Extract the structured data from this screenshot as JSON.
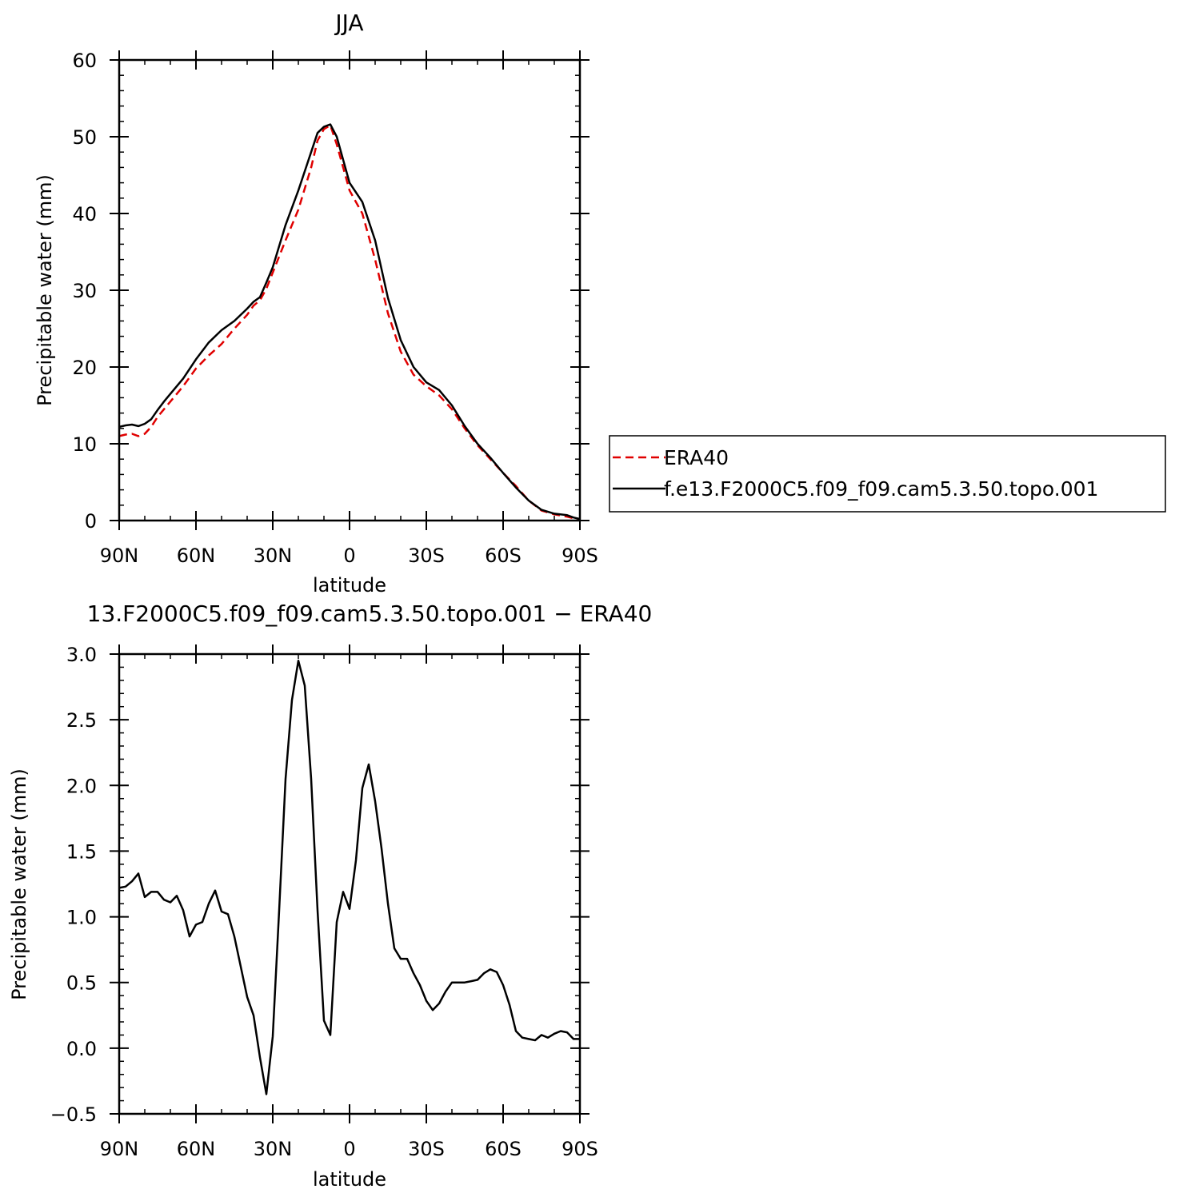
{
  "chart_data": [
    {
      "type": "line",
      "title": "JJA",
      "xlabel": "latitude",
      "ylabel": "Precipitable water (mm)",
      "xlim": [
        90,
        -90
      ],
      "ylim": [
        0,
        60
      ],
      "x_ticks": [
        90,
        60,
        30,
        0,
        -30,
        -60,
        -90
      ],
      "x_tick_labels": [
        "90N",
        "60N",
        "30N",
        "0",
        "30S",
        "60S",
        "90S"
      ],
      "y_ticks": [
        0,
        10,
        20,
        30,
        40,
        50,
        60
      ],
      "y_tick_labels": [
        "0",
        "10",
        "20",
        "30",
        "40",
        "50",
        "60"
      ],
      "legend": "right",
      "series": [
        {
          "name": "ERA40",
          "color": "#e00000",
          "dash": true,
          "x": [
            90,
            87.5,
            85,
            82.5,
            80,
            77.5,
            75,
            72.5,
            70,
            65,
            60,
            55,
            50,
            45,
            40,
            37.5,
            35,
            32.5,
            30,
            25,
            20,
            15,
            12.5,
            10,
            7.5,
            5,
            2.5,
            0,
            -5,
            -10,
            -15,
            -20,
            -25,
            -30,
            -35,
            -40,
            -45,
            -50,
            -55,
            -60,
            -65,
            -70,
            -75,
            -80,
            -85,
            -87.5,
            -90
          ],
          "values": [
            11.0,
            11.2,
            11.3,
            11.0,
            11.3,
            12.2,
            13.5,
            14.5,
            15.5,
            17.5,
            19.8,
            21.5,
            23.0,
            25.0,
            26.8,
            28.0,
            28.7,
            30.2,
            32.3,
            36.5,
            40.5,
            46.0,
            49.5,
            51.0,
            51.5,
            49.0,
            46.0,
            43.0,
            40.0,
            34.0,
            27.0,
            22.0,
            19.0,
            17.5,
            16.3,
            14.5,
            12.0,
            9.8,
            8.0,
            6.2,
            4.5,
            2.6,
            1.3,
            0.8,
            0.5,
            0.3,
            0.2
          ]
        },
        {
          "name": "f.e13.F2000C5.f09_f09.cam5.3.50.topo.001",
          "color": "#000000",
          "dash": false,
          "x": [
            90,
            87.5,
            85,
            82.5,
            80,
            77.5,
            75,
            72.5,
            70,
            65,
            60,
            55,
            50,
            45,
            40,
            37.5,
            35,
            32.5,
            30,
            25,
            20,
            15,
            12.5,
            10,
            7.5,
            5,
            2.5,
            0,
            -5,
            -10,
            -15,
            -20,
            -25,
            -30,
            -35,
            -40,
            -45,
            -50,
            -55,
            -60,
            -65,
            -70,
            -75,
            -80,
            -85,
            -87.5,
            -90
          ],
          "values": [
            12.2,
            12.4,
            12.5,
            12.3,
            12.6,
            13.2,
            14.4,
            15.5,
            16.5,
            18.5,
            21.0,
            23.2,
            24.8,
            26.0,
            27.6,
            28.5,
            29.1,
            31.0,
            33.0,
            38.5,
            43.0,
            48.0,
            50.5,
            51.3,
            51.6,
            50.0,
            47.0,
            44.0,
            41.5,
            36.5,
            29.0,
            23.5,
            20.0,
            18.0,
            17.0,
            15.0,
            12.3,
            10.0,
            8.2,
            6.2,
            4.3,
            2.6,
            1.4,
            0.9,
            0.7,
            0.4,
            0.2
          ]
        }
      ]
    },
    {
      "type": "line",
      "title": "13.F2000C5.f09_f09.cam5.3.50.topo.001 − ERA40",
      "xlabel": "latitude",
      "ylabel": "Precipitable water (mm)",
      "xlim": [
        90,
        -90
      ],
      "ylim": [
        -0.5,
        3.0
      ],
      "x_ticks": [
        90,
        60,
        30,
        0,
        -30,
        -60,
        -90
      ],
      "x_tick_labels": [
        "90N",
        "60N",
        "30N",
        "0",
        "30S",
        "60S",
        "90S"
      ],
      "y_ticks": [
        -0.5,
        0.0,
        0.5,
        1.0,
        1.5,
        2.0,
        2.5,
        3.0
      ],
      "y_tick_labels": [
        "−0.5",
        "0.0",
        "0.5",
        "1.0",
        "1.5",
        "2.0",
        "2.5",
        "3.0"
      ],
      "series": [
        {
          "color": "#000000",
          "dash": false,
          "x": [
            90,
            87.5,
            85,
            82.5,
            80,
            77.5,
            75,
            72.5,
            70,
            67.5,
            65,
            62.5,
            60,
            57.5,
            55,
            52.5,
            50,
            47.5,
            45,
            42.5,
            40,
            37.5,
            35,
            32.5,
            30,
            27.5,
            25,
            22.5,
            20,
            17.5,
            15,
            12.5,
            10,
            7.5,
            5,
            2.5,
            0,
            -2.5,
            -5,
            -7.5,
            -10,
            -12.5,
            -15,
            -17.5,
            -20,
            -22.5,
            -25,
            -27.5,
            -30,
            -32.5,
            -35,
            -37.5,
            -40,
            -42.5,
            -45,
            -47.5,
            -50,
            -52.5,
            -55,
            -57.5,
            -60,
            -62.5,
            -65,
            -67.5,
            -70,
            -72.5,
            -75,
            -77.5,
            -80,
            -82.5,
            -85,
            -87.5,
            -90
          ],
          "values": [
            1.22,
            1.23,
            1.27,
            1.33,
            1.15,
            1.19,
            1.19,
            1.13,
            1.11,
            1.16,
            1.05,
            0.85,
            0.94,
            0.96,
            1.1,
            1.2,
            1.04,
            1.02,
            0.85,
            0.62,
            0.39,
            0.25,
            -0.07,
            -0.35,
            0.09,
            1.05,
            2.05,
            2.65,
            2.95,
            2.76,
            2.05,
            1.05,
            0.21,
            0.1,
            0.96,
            1.19,
            1.06,
            1.43,
            1.98,
            2.16,
            1.88,
            1.52,
            1.1,
            0.76,
            0.68,
            0.68,
            0.57,
            0.48,
            0.36,
            0.29,
            0.34,
            0.43,
            0.5,
            0.5,
            0.5,
            0.51,
            0.52,
            0.57,
            0.6,
            0.58,
            0.48,
            0.33,
            0.13,
            0.08,
            0.07,
            0.06,
            0.1,
            0.08,
            0.11,
            0.13,
            0.12,
            0.07,
            0.07
          ]
        }
      ]
    }
  ]
}
